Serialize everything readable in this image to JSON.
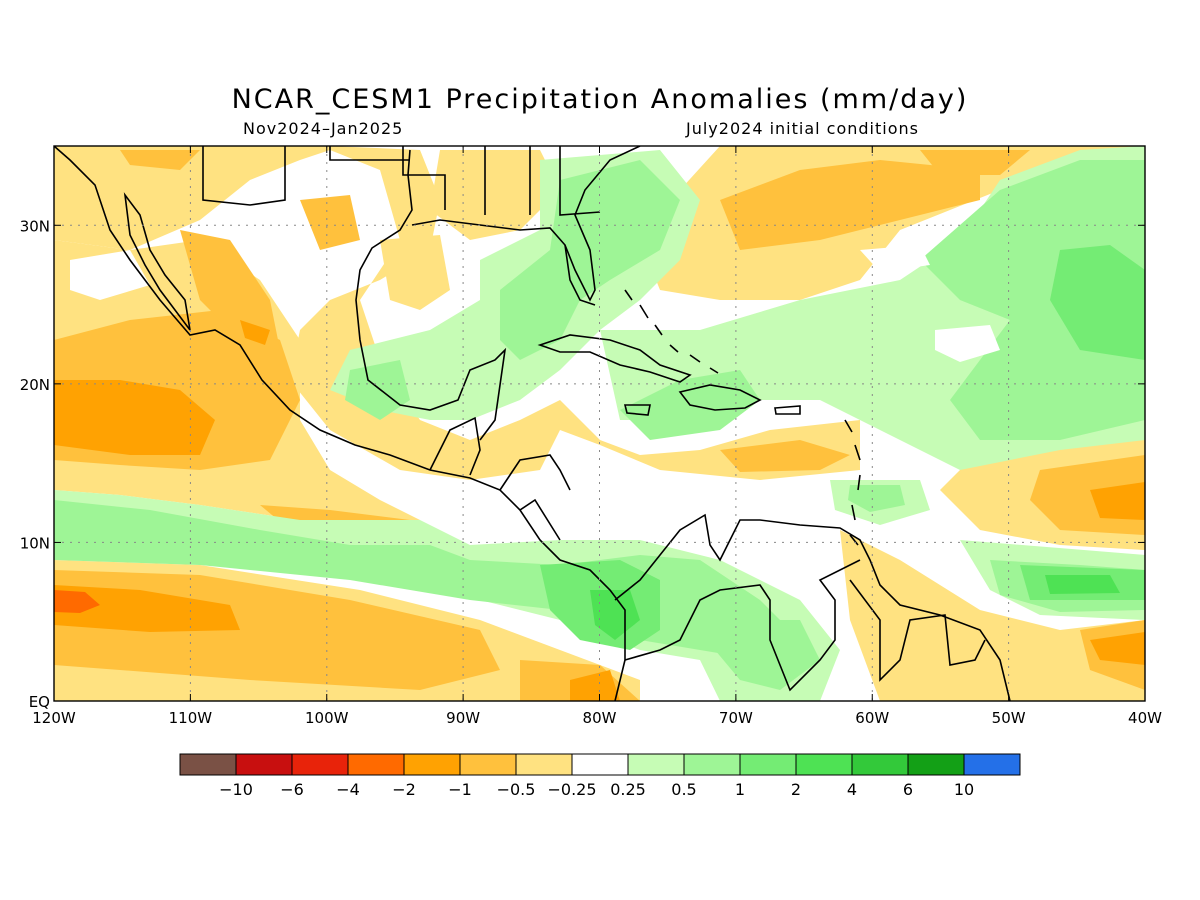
{
  "title": "NCAR_CESM1 Precipitation Anomalies (mm/day)",
  "subtitle_left": "Nov2024–Jan2025",
  "subtitle_right": "July2024 initial conditions",
  "map": {
    "lon_range": [
      -120,
      -40
    ],
    "lat_range": [
      0,
      35
    ],
    "x_ticks": [
      "120W",
      "110W",
      "100W",
      "90W",
      "80W",
      "70W",
      "60W",
      "50W",
      "40W"
    ],
    "y_ticks": [
      "EQ",
      "10N",
      "20N",
      "30N"
    ],
    "gridlines": "dotted"
  },
  "colorbar": {
    "colors": [
      "#7a5145",
      "#c80f0f",
      "#e8230a",
      "#ff6a00",
      "#ffa202",
      "#ffc13d",
      "#ffe281",
      "#ffffff",
      "#c6fcb5",
      "#9ef596",
      "#74ec74",
      "#4ee254",
      "#33c93a",
      "#13a016",
      "#2470e8"
    ],
    "labels": [
      "−10",
      "−6",
      "−4",
      "−2",
      "−1",
      "−0.5",
      "−0.25",
      "0.25",
      "0.5",
      "1",
      "2",
      "4",
      "6",
      "10"
    ]
  }
}
